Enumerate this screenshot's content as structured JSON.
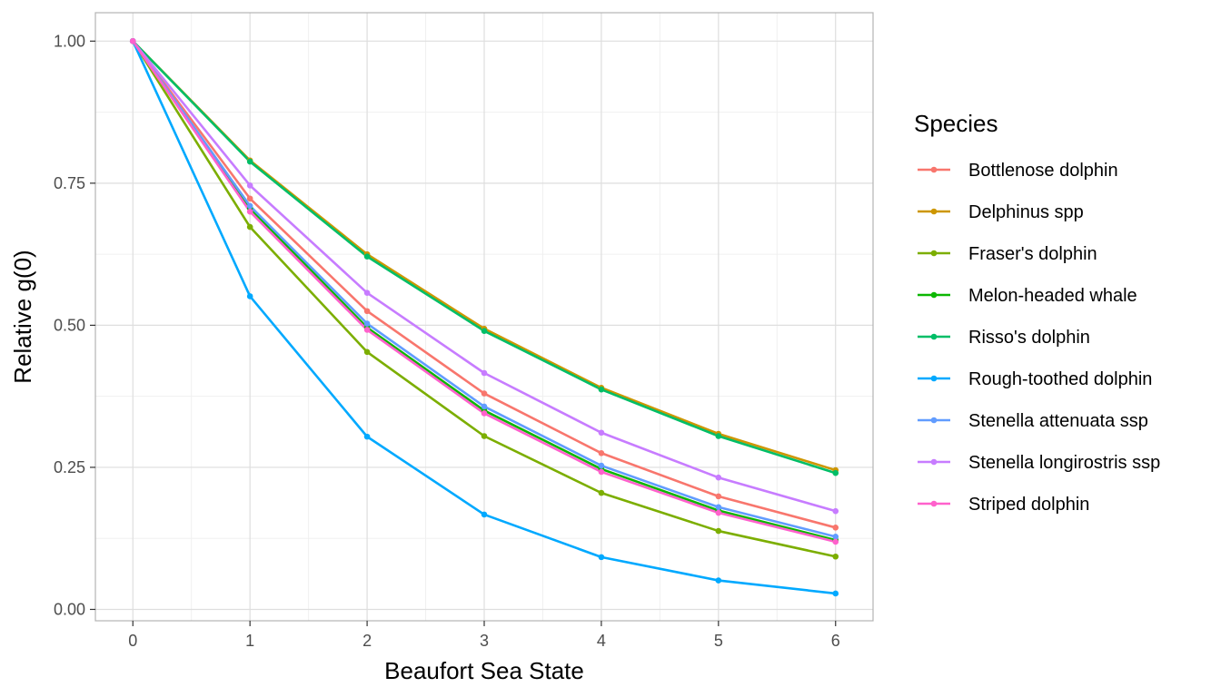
{
  "chart_data": {
    "type": "line",
    "title": "",
    "xlabel": "Beaufort Sea State",
    "ylabel": "Relative g(0)",
    "x": [
      0,
      1,
      2,
      3,
      4,
      5,
      6
    ],
    "x_tick_labels": [
      "0",
      "1",
      "2",
      "3",
      "4",
      "5",
      "6"
    ],
    "y_ticks": [
      0,
      0.25,
      0.5,
      0.75,
      1
    ],
    "y_tick_labels": [
      "0.00",
      "0.25",
      "0.50",
      "0.75",
      "1.00"
    ],
    "xlim": [
      -0.32,
      6.32
    ],
    "ylim": [
      -0.02,
      1.05
    ],
    "grid": true,
    "legend": {
      "title": "Species",
      "position": "right"
    },
    "series": [
      {
        "name": "Bottlenose dolphin",
        "color": "#F8766D",
        "values": [
          1.0,
          0.723,
          0.525,
          0.38,
          0.275,
          0.199,
          0.144
        ]
      },
      {
        "name": "Delphinus spp",
        "color": "#CD9600",
        "values": [
          1.0,
          0.79,
          0.625,
          0.494,
          0.39,
          0.309,
          0.245
        ]
      },
      {
        "name": "Fraser's dolphin",
        "color": "#7CAE00",
        "values": [
          1.0,
          0.673,
          0.453,
          0.305,
          0.205,
          0.138,
          0.093
        ]
      },
      {
        "name": "Melon-headed whale",
        "color": "#0CB702",
        "values": [
          1.0,
          0.706,
          0.496,
          0.35,
          0.247,
          0.174,
          0.122
        ]
      },
      {
        "name": "Risso's dolphin",
        "color": "#00BE67",
        "values": [
          1.0,
          0.788,
          0.621,
          0.49,
          0.387,
          0.305,
          0.24
        ]
      },
      {
        "name": "Rough-toothed dolphin",
        "color": "#00A9FF",
        "values": [
          1.0,
          0.551,
          0.304,
          0.167,
          0.092,
          0.051,
          0.028
        ]
      },
      {
        "name": "Stenella attenuata ssp",
        "color": "#619CFF",
        "values": [
          1.0,
          0.71,
          0.503,
          0.357,
          0.253,
          0.18,
          0.128
        ]
      },
      {
        "name": "Stenella longirostris ssp",
        "color": "#C77CFF",
        "values": [
          1.0,
          0.746,
          0.557,
          0.416,
          0.311,
          0.232,
          0.173
        ]
      },
      {
        "name": "Striped dolphin",
        "color": "#FF61CC",
        "values": [
          1.0,
          0.7,
          0.492,
          0.345,
          0.242,
          0.17,
          0.119
        ]
      }
    ]
  }
}
